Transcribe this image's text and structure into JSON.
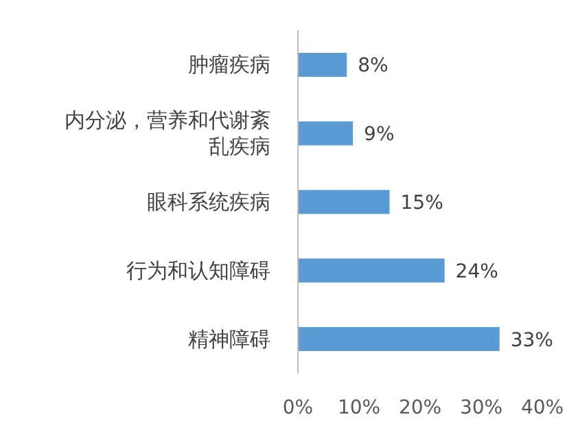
{
  "chart_data": {
    "type": "bar",
    "orientation": "horizontal",
    "categories": [
      "肿瘤疾病",
      "内分泌，营养和代谢紊乱疾病",
      "眼科系统疾病",
      "行为和认知障碍",
      "精神障碍"
    ],
    "values": [
      8,
      9,
      15,
      24,
      33
    ],
    "value_labels": [
      "8%",
      "9%",
      "15%",
      "24%",
      "33%"
    ],
    "color": "#5b9bd5",
    "xlim": [
      0,
      40
    ],
    "xticks": [
      {
        "value": 0,
        "label": "0%"
      },
      {
        "value": 10,
        "label": "10%"
      },
      {
        "value": 20,
        "label": "20%"
      },
      {
        "value": 30,
        "label": "30%"
      },
      {
        "value": 40,
        "label": "40%"
      }
    ],
    "grid": false
  }
}
